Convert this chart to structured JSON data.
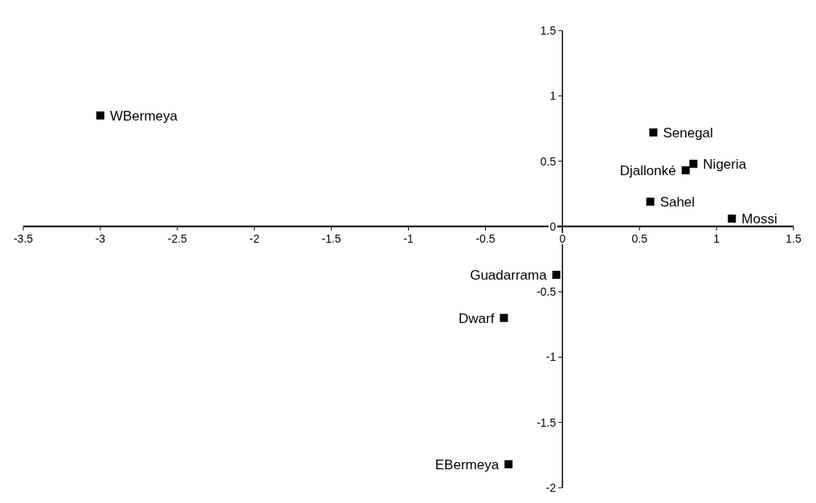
{
  "chart_data": {
    "type": "scatter",
    "x": [
      -3.0,
      0.59,
      0.85,
      0.8,
      0.57,
      1.1,
      -0.04,
      -0.38,
      -0.35
    ],
    "values": [
      0.85,
      0.72,
      0.48,
      0.43,
      0.19,
      0.06,
      -0.37,
      -0.7,
      -1.82
    ],
    "color": "#000000",
    "marker": "square",
    "xlim": [
      -3.5,
      1.5
    ],
    "ylim": [
      -2,
      1.5
    ],
    "xticks": [
      -3.5,
      -3,
      -2.5,
      -2,
      -1.5,
      -1,
      -0.5,
      0,
      0.5,
      1,
      1.5
    ],
    "yticks": [
      -2,
      -1.5,
      -1,
      -0.5,
      0,
      0.5,
      1,
      1.5
    ],
    "grid": false,
    "annotations": [
      {
        "text": "WBermeya",
        "x": -3.0,
        "y": 0.85
      },
      {
        "text": "Senegal",
        "x": 0.59,
        "y": 0.72
      },
      {
        "text": "Nigeria",
        "x": 0.85,
        "y": 0.48
      },
      {
        "text": "Djallonké",
        "x": 0.8,
        "y": 0.43
      },
      {
        "text": "Sahel",
        "x": 0.57,
        "y": 0.19
      },
      {
        "text": "Mossi",
        "x": 1.1,
        "y": 0.06
      },
      {
        "text": "Guadarrama",
        "x": -0.04,
        "y": -0.37
      },
      {
        "text": "Dwarf",
        "x": -0.38,
        "y": -0.7
      },
      {
        "text": "EBermeya",
        "x": -0.35,
        "y": -1.82
      }
    ]
  }
}
